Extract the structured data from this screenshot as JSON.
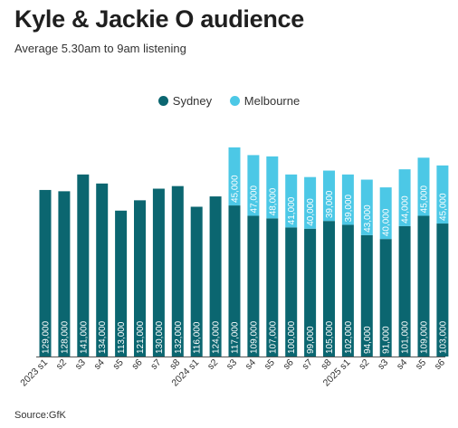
{
  "title": "Kyle & Jackie O audience",
  "subtitle": "Average 5.30am to 9am listening",
  "source": "Source:GfK",
  "colors": {
    "Sydney": "#0b6670",
    "Melbourne": "#4cc8e6"
  },
  "chart_data": {
    "type": "bar",
    "stacked": true,
    "categories": [
      "2023 s1",
      "s2",
      "s3",
      "s4",
      "s5",
      "s6",
      "s7",
      "s8",
      "2024 s1",
      "s2",
      "s3",
      "s4",
      "s5",
      "s6",
      "s7",
      "s8",
      "2025 s1",
      "s2",
      "s3",
      "s4",
      "s5",
      "s6"
    ],
    "series": [
      {
        "name": "Sydney",
        "values": [
          129000,
          128000,
          141000,
          134000,
          113000,
          121000,
          130000,
          132000,
          116000,
          124000,
          117000,
          109000,
          107000,
          100000,
          99000,
          105000,
          102000,
          94000,
          91000,
          101000,
          109000,
          103000
        ],
        "labels": [
          "129,000",
          "128,000",
          "141,000",
          "134,000",
          "113,000",
          "121,000",
          "130,000",
          "132,000",
          "116,000",
          "124,000",
          "117,000",
          "109,000",
          "107,000",
          "100,000",
          "99,000",
          "105,000",
          "102,000",
          "94,000",
          "91,000",
          "101,000",
          "109,000",
          "103,000"
        ]
      },
      {
        "name": "Melbourne",
        "values": [
          null,
          null,
          null,
          null,
          null,
          null,
          null,
          null,
          null,
          null,
          45000,
          47000,
          48000,
          41000,
          40000,
          39000,
          39000,
          43000,
          40000,
          44000,
          45000,
          45000
        ],
        "labels": [
          "",
          "",
          "",
          "",
          "",
          "",
          "",
          "",
          "",
          "",
          "45,000",
          "47,000",
          "48,000",
          "41,000",
          "40,000",
          "39,000",
          "39,000",
          "43,000",
          "40,000",
          "44,000",
          "45,000",
          "45,000"
        ]
      }
    ],
    "legend": "top-center",
    "grid": false
  }
}
